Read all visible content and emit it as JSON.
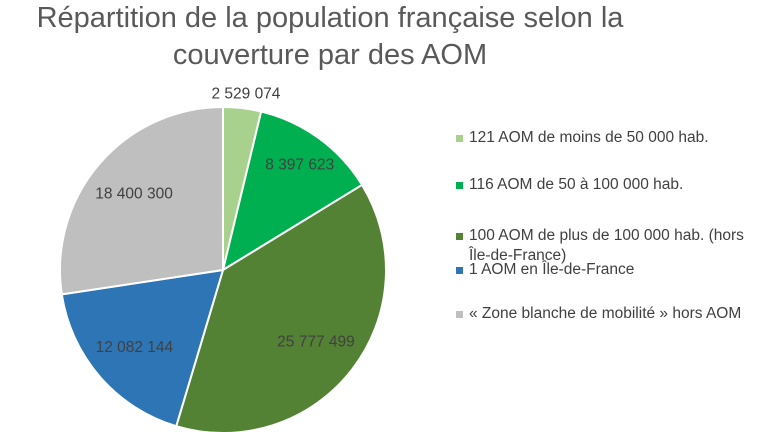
{
  "chart_data": {
    "type": "pie",
    "title": [
      "Répartition de la population française selon la",
      "couverture par des AOM"
    ],
    "start_angle_deg": 0,
    "direction": "clockwise",
    "slices": [
      {
        "label": "121 AOM de moins de 50 000 hab.",
        "value": 2529074,
        "data_label": "2 529 074",
        "color": "#A9D18E"
      },
      {
        "label": "116 AOM de 50 à 100 000 hab.",
        "value": 8397623,
        "data_label": "8 397 623",
        "color": "#00B050"
      },
      {
        "label": "100 AOM de plus de 100 000 hab. (hors Île-de-France)",
        "value": 25777499,
        "data_label": "25 777 499",
        "color": "#548235"
      },
      {
        "label": "1 AOM en Île-de-France",
        "value": 12082144,
        "data_label": "12 082 144",
        "color": "#2E75B6"
      },
      {
        "label": "« Zone blanche de mobilité » hors AOM",
        "value": 18400300,
        "data_label": "18 400 300",
        "color": "#BFBFBF"
      }
    ],
    "legend_position": "right"
  }
}
